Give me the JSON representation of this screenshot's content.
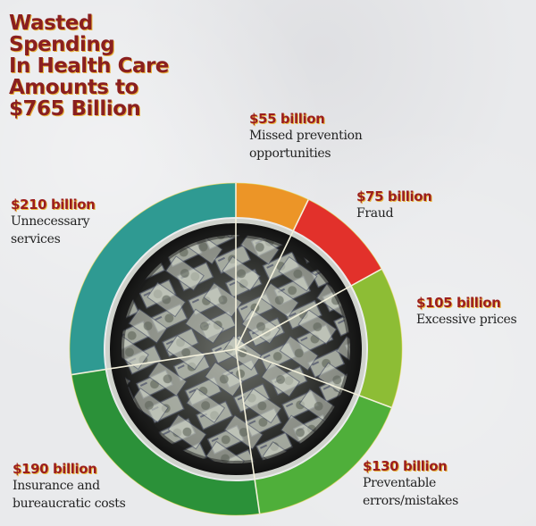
{
  "title_lines": [
    "Wasted",
    "Spending",
    "In Health Care",
    "Amounts to",
    "$765 Billion"
  ],
  "chart_data": {
    "type": "pie",
    "style": "donut",
    "title": "Wasted Spending In Health Care Amounts to $765 Billion",
    "total": 765,
    "unit": "billion USD",
    "center": [
      264,
      391
    ],
    "outer_radius": 186,
    "inner_radius": 148,
    "categories": [
      "Missed prevention opportunities",
      "Fraud",
      "Excessive prices",
      "Preventable errors/mistakes",
      "Insurance and bureaucratic costs",
      "Unnecessary services"
    ],
    "values": [
      55,
      75,
      105,
      130,
      190,
      210
    ],
    "colors": [
      "#ec9527",
      "#e2312b",
      "#8dbd35",
      "#4faf3a",
      "#2b9139",
      "#2f9a92"
    ],
    "order": "clockwise from 12 o'clock",
    "legend": "callout labels around ring"
  },
  "labels": [
    {
      "amount": "$55 billion",
      "desc": [
        "Missed prevention",
        "opportunities"
      ]
    },
    {
      "amount": "$75 billion",
      "desc": [
        "Fraud"
      ]
    },
    {
      "amount": "$105 billion",
      "desc": [
        "Excessive prices"
      ]
    },
    {
      "amount": "$130 billion",
      "desc": [
        "Preventable",
        "errors/mistakes"
      ]
    },
    {
      "amount": "$190 billion",
      "desc": [
        "Insurance and",
        "bureaucratic costs"
      ]
    },
    {
      "amount": "$210 billion",
      "desc": [
        "Unnecessary",
        "services"
      ]
    }
  ],
  "center_image": "crumpled-dollar-bills-in-bucket"
}
